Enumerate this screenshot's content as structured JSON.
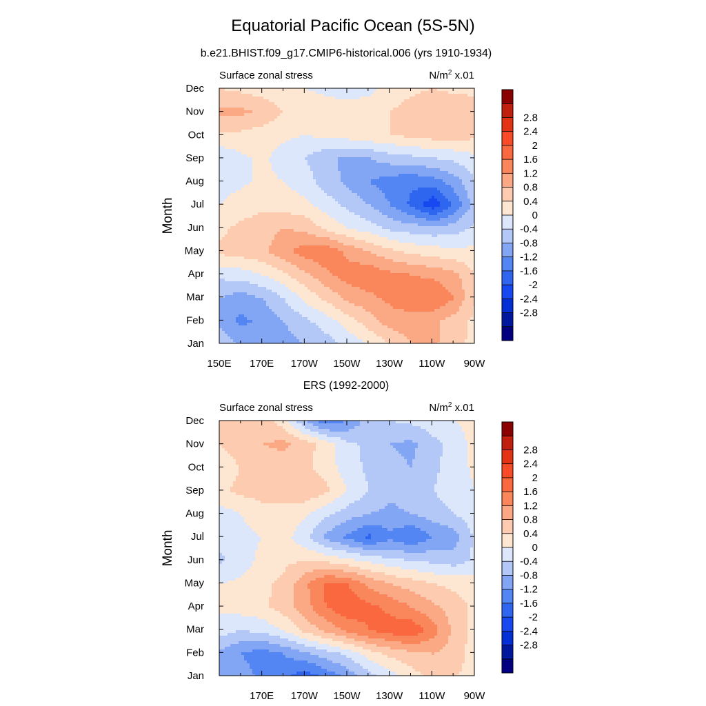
{
  "figure": {
    "title": "Equatorial Pacific Ocean (5S-5N)",
    "subtitle": "b.e21.BHIST.f09_g17.CMIP6-historical.006 (yrs 1910-1934)"
  },
  "colorbar": {
    "colors": [
      "#000080",
      "#00189e",
      "#0230d4",
      "#1748f0",
      "#2f66f0",
      "#5386f2",
      "#82a6f4",
      "#b3c8f7",
      "#dce7fb",
      "#fde6d2",
      "#fccbb0",
      "#fba985",
      "#fa875c",
      "#f9683f",
      "#f84b27",
      "#e23415",
      "#c0200c",
      "#8b0000"
    ],
    "tick_labels": [
      "-2.8",
      "-2.4",
      "-2",
      "-1.6",
      "-1.2",
      "-0.8",
      "-0.4",
      "0",
      "0.4",
      "0.8",
      "1.2",
      "1.6",
      "2",
      "2.4",
      "2.8"
    ]
  },
  "chart_data": [
    {
      "type": "heatmap",
      "panel_title": "",
      "left_label": "Surface zonal stress",
      "units_main": "N/m",
      "units_sup": "2",
      "units_suffix": " x.01",
      "ylabel": "Month",
      "xlabel": "",
      "x_tick_labels": [
        "150E",
        "170E",
        "170W",
        "150W",
        "130W",
        "110W",
        "90W"
      ],
      "y_tick_labels": [
        "Jan",
        "Feb",
        "Mar",
        "Apr",
        "May",
        "Jun",
        "Jul",
        "Aug",
        "Sep",
        "Oct",
        "Nov",
        "Dec"
      ],
      "xlim": [
        150,
        270
      ],
      "ylim": [
        1,
        12
      ],
      "x": [
        150,
        160,
        170,
        180,
        190,
        200,
        210,
        220,
        230,
        240,
        250,
        260,
        270
      ],
      "y": [
        1,
        2,
        3,
        4,
        5,
        6,
        7,
        8,
        9,
        10,
        11,
        12
      ],
      "values": [
        [
          -0.4,
          -0.9,
          -1.1,
          -1.0,
          -0.8,
          -0.6,
          -0.3,
          0.0,
          0.4,
          0.8,
          0.9,
          0.5,
          0.3
        ],
        [
          -0.9,
          -1.3,
          -1.1,
          -0.8,
          -0.5,
          -0.2,
          0.2,
          0.6,
          1.0,
          1.0,
          0.9,
          0.6,
          0.3
        ],
        [
          -0.8,
          -1.0,
          -0.8,
          -0.4,
          0.1,
          0.5,
          0.9,
          1.1,
          1.3,
          1.5,
          1.6,
          1.2,
          0.4
        ],
        [
          -0.3,
          -0.2,
          0.0,
          0.3,
          0.7,
          1.1,
          1.4,
          1.5,
          1.3,
          1.2,
          1.1,
          0.9,
          0.4
        ],
        [
          0.5,
          0.6,
          0.7,
          1.1,
          1.4,
          1.5,
          1.1,
          0.8,
          0.5,
          0.3,
          0.2,
          0.1,
          0.1
        ],
        [
          0.3,
          0.5,
          0.6,
          0.8,
          0.7,
          0.3,
          0.0,
          -0.2,
          -0.5,
          -0.6,
          -0.7,
          -0.6,
          -0.3
        ],
        [
          0.0,
          0.2,
          0.3,
          0.2,
          0.1,
          -0.2,
          -0.5,
          -0.8,
          -1.2,
          -1.7,
          -2.3,
          -1.5,
          -0.6
        ],
        [
          -0.2,
          -0.1,
          0.1,
          0.0,
          -0.2,
          -0.6,
          -0.9,
          -1.2,
          -1.4,
          -1.5,
          -1.4,
          -1.0,
          -0.4
        ],
        [
          -0.3,
          -0.1,
          0.1,
          -0.2,
          -0.4,
          -0.7,
          -0.9,
          -0.8,
          -0.6,
          -0.5,
          -0.4,
          -0.3,
          -0.1
        ],
        [
          0.3,
          0.3,
          0.2,
          0.1,
          0.0,
          0.1,
          0.2,
          0.3,
          0.4,
          0.5,
          0.6,
          0.6,
          0.5
        ],
        [
          0.9,
          0.9,
          0.7,
          0.4,
          0.3,
          0.2,
          0.2,
          0.2,
          0.4,
          0.6,
          0.7,
          0.7,
          0.6
        ],
        [
          0.4,
          0.3,
          0.2,
          0.1,
          0.0,
          -0.1,
          -0.2,
          -0.1,
          0.1,
          0.3,
          0.4,
          0.3,
          0.3
        ]
      ]
    },
    {
      "type": "heatmap",
      "panel_title": "ERS (1992-2000)",
      "left_label": "Surface zonal stress",
      "units_main": "N/m",
      "units_sup": "2",
      "units_suffix": " x.01",
      "ylabel": "Month",
      "xlabel": "",
      "x_tick_labels": [
        "",
        "170E",
        "170W",
        "150W",
        "130W",
        "110W",
        "90W"
      ],
      "y_tick_labels": [
        "Jan",
        "Feb",
        "Mar",
        "Apr",
        "May",
        "Jun",
        "Jul",
        "Aug",
        "Sep",
        "Oct",
        "Nov",
        "Dec"
      ],
      "xlim": [
        150,
        270
      ],
      "ylim": [
        1,
        12
      ],
      "x": [
        150,
        160,
        170,
        180,
        190,
        200,
        210,
        220,
        230,
        240,
        250,
        260,
        270
      ],
      "y": [
        1,
        2,
        3,
        4,
        5,
        6,
        7,
        8,
        9,
        10,
        11,
        12
      ],
      "values": [
        [
          -0.8,
          -1.0,
          -1.3,
          -1.5,
          -1.9,
          -1.5,
          -1.1,
          -0.6,
          -0.2,
          0.2,
          0.5,
          0.4,
          0.3
        ],
        [
          -0.9,
          -1.2,
          -1.4,
          -1.2,
          -0.9,
          -0.6,
          -0.3,
          0.2,
          0.5,
          0.7,
          0.8,
          0.6,
          0.2
        ],
        [
          -0.2,
          -0.4,
          -0.3,
          0.0,
          0.5,
          0.9,
          1.3,
          1.6,
          1.8,
          1.9,
          1.4,
          0.7,
          0.2
        ],
        [
          0.1,
          0.2,
          0.3,
          0.6,
          1.0,
          1.6,
          1.9,
          1.7,
          1.5,
          1.2,
          0.9,
          0.6,
          0.3
        ],
        [
          0.0,
          0.1,
          0.3,
          0.5,
          1.1,
          1.7,
          1.6,
          1.1,
          0.8,
          0.6,
          0.4,
          0.3,
          0.2
        ],
        [
          -0.5,
          -0.2,
          0.1,
          0.3,
          0.4,
          0.3,
          0.1,
          -0.1,
          -0.3,
          -0.4,
          -0.5,
          -0.6,
          -0.3
        ],
        [
          -0.2,
          -0.1,
          0.0,
          0.2,
          -0.3,
          -0.9,
          -1.3,
          -1.7,
          -1.3,
          -1.6,
          -1.2,
          -1.0,
          -0.3
        ],
        [
          -0.2,
          0.0,
          0.2,
          0.3,
          0.1,
          -0.3,
          -0.6,
          -0.8,
          -0.9,
          -0.8,
          -0.6,
          -0.4,
          -0.1
        ],
        [
          0.3,
          0.5,
          0.6,
          0.5,
          0.7,
          0.5,
          0.0,
          -0.4,
          -0.7,
          -0.6,
          -0.4,
          -0.2,
          0.0
        ],
        [
          0.2,
          0.4,
          0.5,
          0.6,
          0.5,
          0.2,
          -0.2,
          -0.5,
          -0.7,
          -0.8,
          -0.5,
          -0.2,
          0.1
        ],
        [
          0.4,
          0.6,
          0.8,
          0.9,
          0.6,
          0.2,
          -0.3,
          -0.5,
          -0.8,
          -0.9,
          -0.5,
          -0.3,
          0.2
        ],
        [
          0.4,
          0.5,
          0.6,
          0.2,
          -0.8,
          -1.5,
          -1.2,
          -0.6,
          -0.4,
          -0.3,
          -0.2,
          0.0,
          0.2
        ]
      ]
    }
  ]
}
